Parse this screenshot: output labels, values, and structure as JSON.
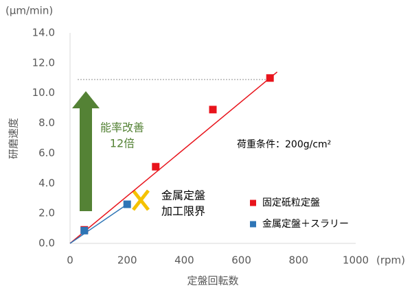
{
  "chart_data": {
    "type": "scatter",
    "y_unit": "(μm/min)",
    "x_unit": "(rpm)",
    "ylabel": "研磨速度",
    "xlabel": "定盤回転数",
    "xlim": [
      0,
      1000
    ],
    "xticks": [
      0,
      200,
      400,
      600,
      800,
      1000
    ],
    "ylim": [
      0,
      14
    ],
    "yticks": [
      {
        "value": 0,
        "label": "0.0"
      },
      {
        "value": 2,
        "label": "2.0"
      },
      {
        "value": 4,
        "label": "4.0"
      },
      {
        "value": 6,
        "label": "6.0"
      },
      {
        "value": 8,
        "label": "8.0"
      },
      {
        "value": 10,
        "label": "10.0"
      },
      {
        "value": 12,
        "label": "12.0"
      },
      {
        "value": 14,
        "label": "14.0"
      }
    ],
    "grid": false,
    "series": [
      {
        "name": "固定砥粒定盤",
        "color": "#e8141c",
        "x": [
          50,
          300,
          500,
          700
        ],
        "values": [
          0.9,
          5.1,
          8.9,
          11.0
        ]
      },
      {
        "name": "金属定盤＋スラリー",
        "color": "#2e75b6",
        "x": [
          50,
          200
        ],
        "values": [
          0.85,
          2.6
        ]
      }
    ],
    "trend_lines": [
      {
        "color": "#e8141c",
        "x": [
          0,
          725
        ],
        "values": [
          0,
          11.4
        ]
      },
      {
        "color": "#2e75b6",
        "x": [
          0,
          200
        ],
        "values": [
          0,
          2.6
        ]
      }
    ],
    "annotations": {
      "improvement": [
        "能率改善",
        "12倍"
      ],
      "limit": [
        "金属定盤",
        "加工限界"
      ],
      "condition": "荷重条件：200g/cm²"
    }
  }
}
